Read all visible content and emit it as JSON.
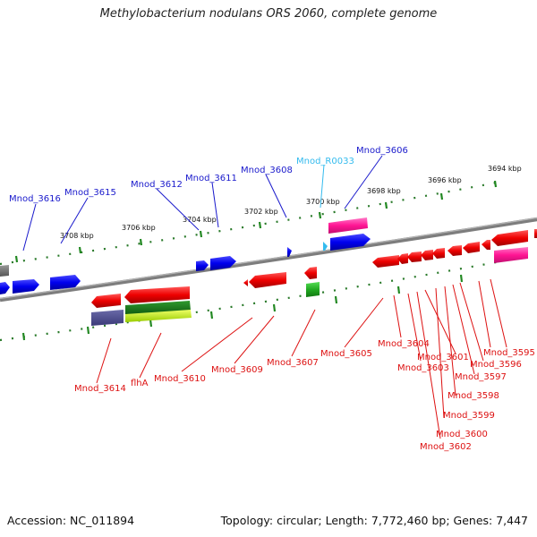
{
  "title": "Methylobacterium nodulans ORS 2060, complete genome",
  "footer": {
    "accession": "Accession: NC_011894",
    "summary": "Topology: circular; Length: 7,772,460 bp; Genes: 7,447"
  },
  "scale_labels": [
    "3694 kbp",
    "3696 kbp",
    "3698 kbp",
    "3700 kbp",
    "3702 kbp",
    "3704 kbp",
    "3706 kbp",
    "3708 kbp"
  ],
  "gene_labels_top": [
    "Mnod_3616",
    "Mnod_3615",
    "Mnod_3612",
    "Mnod_3611",
    "Mnod_3608",
    "Mnod_R0033",
    "Mnod_3606"
  ],
  "gene_labels_bottom": [
    "Mnod_3614",
    "flhA",
    "Mnod_3610",
    "Mnod_3609",
    "Mnod_3607",
    "Mnod_3605",
    "Mnod_3604",
    "Mnod_3603",
    "Mnod_3601",
    "Mnod_3597",
    "Mnod_3596",
    "Mnod_3595",
    "Mnod_3598",
    "Mnod_3599",
    "Mnod_3600",
    "Mnod_3602"
  ],
  "colors": {
    "forward_gene": "#0000ee",
    "reverse_gene": "#ee0000",
    "rna_gene": "#33bbee",
    "backbone": "#888888",
    "tick": "#228822"
  }
}
